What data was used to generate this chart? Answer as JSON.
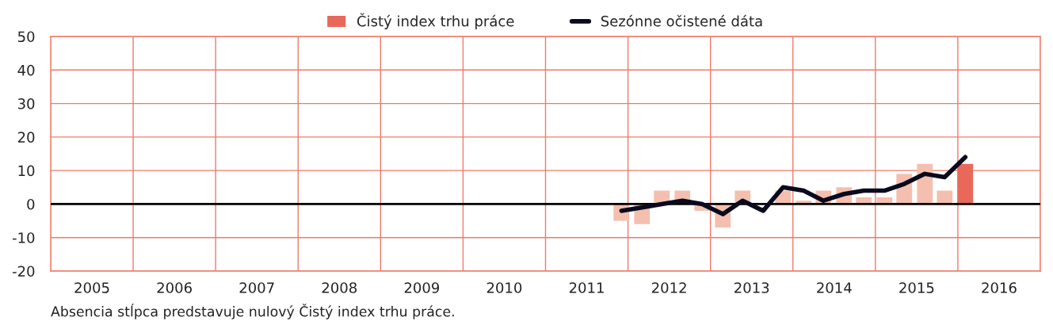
{
  "chart_data": {
    "type": "bar",
    "x": [
      2011.92,
      2012.17,
      2012.41,
      2012.66,
      2012.9,
      2013.15,
      2013.39,
      2013.64,
      2013.88,
      2014.13,
      2014.37,
      2014.62,
      2014.86,
      2015.11,
      2015.35,
      2015.6,
      2015.84,
      2016.09
    ],
    "series": [
      {
        "name": "Čistý index trhu práce",
        "color": "#e8695a",
        "colors": [
          "#f4bfae",
          "#f4bfae",
          "#f4bfae",
          "#f4bfae",
          "#f4bfae",
          "#f4bfae",
          "#f4bfae",
          "#f4bfae",
          "#f4bfae",
          "#f4bfae",
          "#f4bfae",
          "#f4bfae",
          "#f4bfae",
          "#f4bfae",
          "#f4bfae",
          "#f4bfae",
          "#f4bfae",
          "#e8695a"
        ],
        "values": [
          -5,
          -6,
          4,
          4,
          -2,
          -7,
          4,
          0,
          4,
          1,
          4,
          5,
          2,
          2,
          9,
          12,
          4,
          12
        ]
      },
      {
        "name": "Sezónne očistené dáta",
        "type": "line",
        "color": "#0a0a1e",
        "values": [
          -2,
          -1,
          0,
          1,
          0,
          -3,
          1,
          -2,
          5,
          4,
          1,
          3,
          4,
          4,
          6,
          9,
          8,
          14
        ]
      }
    ],
    "xlim": [
      2005,
      2017
    ],
    "xticks": [
      {
        "value": 2005,
        "label": null
      },
      {
        "value": 2005.5,
        "label": "2005"
      },
      {
        "value": 2006,
        "label": null
      },
      {
        "value": 2006.5,
        "label": "2006"
      },
      {
        "value": 2007,
        "label": null
      },
      {
        "value": 2007.5,
        "label": "2007"
      },
      {
        "value": 2008,
        "label": null
      },
      {
        "value": 2008.5,
        "label": "2008"
      },
      {
        "value": 2009,
        "label": null
      },
      {
        "value": 2009.5,
        "label": "2009"
      },
      {
        "value": 2010,
        "label": null
      },
      {
        "value": 2010.5,
        "label": "2010"
      },
      {
        "value": 2011,
        "label": null
      },
      {
        "value": 2011.5,
        "label": "2011"
      },
      {
        "value": 2012,
        "label": null
      },
      {
        "value": 2012.5,
        "label": "2012"
      },
      {
        "value": 2013,
        "label": null
      },
      {
        "value": 2013.5,
        "label": "2013"
      },
      {
        "value": 2014,
        "label": null
      },
      {
        "value": 2014.5,
        "label": "2014"
      },
      {
        "value": 2015,
        "label": null
      },
      {
        "value": 2015.5,
        "label": "2015"
      },
      {
        "value": 2016,
        "label": null
      },
      {
        "value": 2016.5,
        "label": "2016"
      },
      {
        "value": 2017,
        "label": null
      }
    ],
    "ylim": [
      -20,
      50
    ],
    "yticks": [
      -20,
      -10,
      0,
      10,
      20,
      30,
      40,
      50
    ],
    "ref_lines": [
      {
        "axis": "y",
        "value": 0,
        "label": null,
        "color": "#000000"
      }
    ],
    "grid": true,
    "legend": "top",
    "annotations": [
      "Absencia stĺpca predstavuje nulový Čistý index trhu práce."
    ]
  }
}
